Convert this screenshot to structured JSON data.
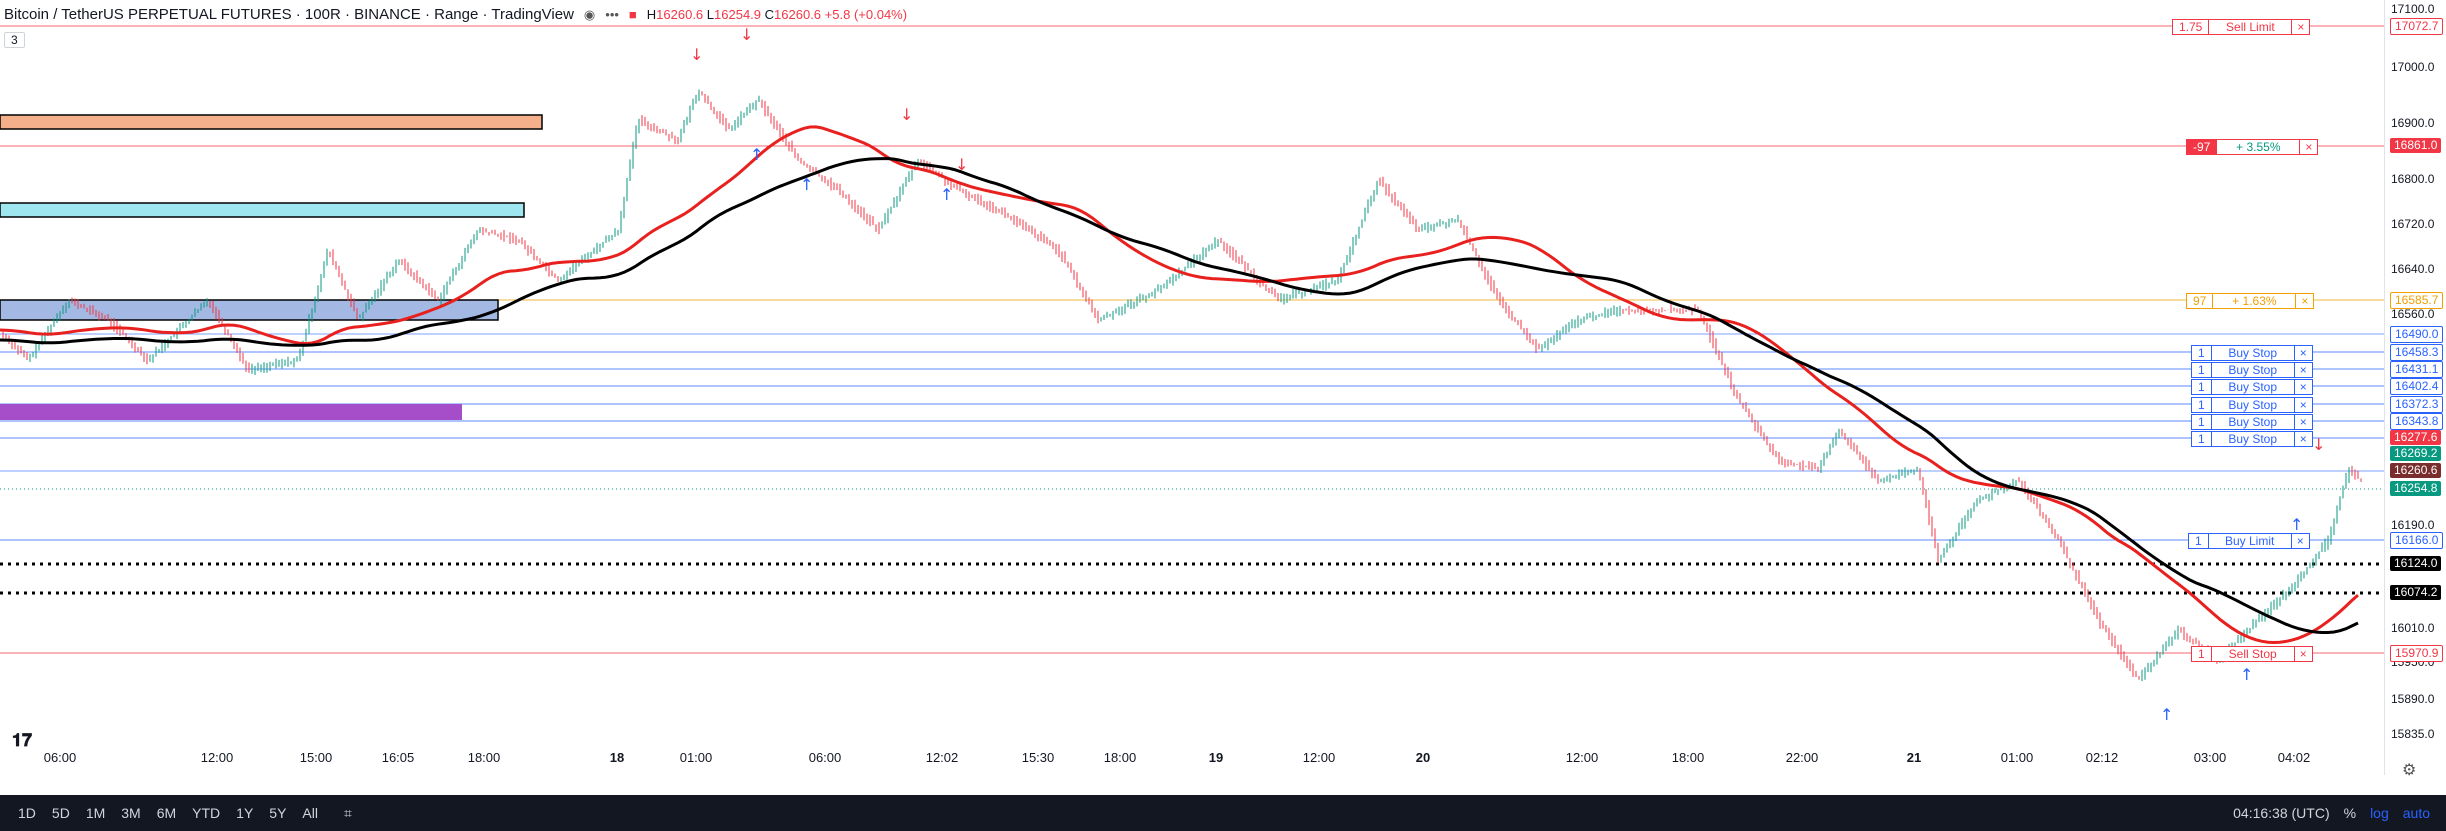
{
  "header": {
    "title": "Bitcoin / TetherUS PERPETUAL FUTURES · 100R · BINANCE · Range · TradingView",
    "ohlc_h_label": "H",
    "ohlc_h": "16260.6",
    "ohlc_l_label": "L",
    "ohlc_l": "16254.9",
    "ohlc_c_label": "C",
    "ohlc_c": "16260.6",
    "ohlc_change": "+5.8 (+0.04%)",
    "indicator_count": "3"
  },
  "price_axis": {
    "ticks": [
      "17100.0",
      "17000.0",
      "16900.0",
      "16800.0",
      "16720.0",
      "16640.0",
      "16560.0",
      "16190.0",
      "16010.0",
      "15950.0",
      "15890.0",
      "15835.0"
    ],
    "tags": [
      {
        "label": "17072.7",
        "color": "#f23645",
        "fill": false
      },
      {
        "label": "16861.0",
        "color": "#f23645",
        "fill": true
      },
      {
        "label": "16585.7",
        "color": "#f0a000",
        "fill": false
      },
      {
        "label": "16490.0",
        "color": "#2962ff",
        "fill": false
      },
      {
        "label": "16458.3",
        "color": "#2962ff",
        "fill": false
      },
      {
        "label": "16431.1",
        "color": "#2962ff",
        "fill": false
      },
      {
        "label": "16402.4",
        "color": "#2962ff",
        "fill": false
      },
      {
        "label": "16372.3",
        "color": "#2962ff",
        "fill": false
      },
      {
        "label": "16343.8",
        "color": "#2962ff",
        "fill": false
      },
      {
        "label": "16277.6",
        "color": "#f23645",
        "fill": true
      },
      {
        "label": "16269.2",
        "color": "#089981",
        "fill": true
      },
      {
        "label": "16260.6",
        "color": "#7a2d2d",
        "fill": true
      },
      {
        "label": "16254.8",
        "color": "#089981",
        "fill": true
      },
      {
        "label": "16166.0",
        "color": "#2962ff",
        "fill": false
      },
      {
        "label": "16124.0",
        "color": "#000000",
        "fill": true
      },
      {
        "label": "16074.2",
        "color": "#000000",
        "fill": true
      },
      {
        "label": "15970.9",
        "color": "#f23645",
        "fill": false
      }
    ]
  },
  "orders": [
    {
      "qty": "1.75",
      "type": "Sell Limit",
      "color": "#f23645",
      "close": "×"
    },
    {
      "qty": "-97",
      "type": "+ 3.55%",
      "color": "#f23645",
      "close": "×"
    },
    {
      "qty": "97",
      "type": "+ 1.63%",
      "color": "#f0a000",
      "close": "×"
    },
    {
      "qty": "1",
      "type": "Buy Stop",
      "color": "#2962ff",
      "close": "×"
    },
    {
      "qty": "1",
      "type": "Buy Stop",
      "color": "#2962ff",
      "close": "×"
    },
    {
      "qty": "1",
      "type": "Buy Stop",
      "color": "#2962ff",
      "close": "×"
    },
    {
      "qty": "1",
      "type": "Buy Stop",
      "color": "#2962ff",
      "close": "×"
    },
    {
      "qty": "1",
      "type": "Buy Stop",
      "color": "#2962ff",
      "close": "×"
    },
    {
      "qty": "1",
      "type": "Buy Stop",
      "color": "#2962ff",
      "close": "×"
    },
    {
      "qty": "1",
      "type": "Buy Limit",
      "color": "#2962ff",
      "close": "×"
    },
    {
      "qty": "1",
      "type": "Sell Stop",
      "color": "#f23645",
      "close": "×"
    }
  ],
  "time_axis": [
    "06:00",
    "12:00",
    "15:00",
    "16:05",
    "18:00",
    "18",
    "01:00",
    "06:00",
    "12:02",
    "15:30",
    "18:00",
    "19",
    "12:00",
    "20",
    "12:00",
    "18:00",
    "22:00",
    "21",
    "01:00",
    "02:12",
    "03:00",
    "04:02"
  ],
  "bottom": {
    "timeframes": [
      "1D",
      "5D",
      "1M",
      "3M",
      "6M",
      "YTD",
      "1Y",
      "5Y",
      "All"
    ],
    "clock": "04:16:38 (UTC)",
    "percent": "%",
    "log": "log",
    "auto": "auto"
  },
  "colors": {
    "up": "#089981",
    "down": "#f23645",
    "ma_fast": "#e8211f",
    "ma_slow": "#000000"
  }
}
